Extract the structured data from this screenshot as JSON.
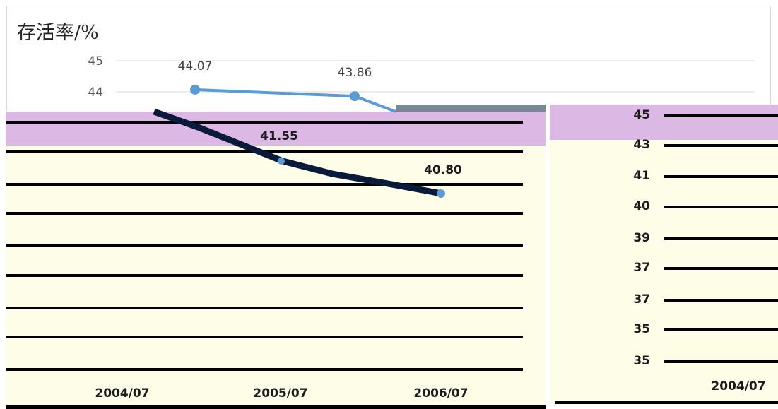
{
  "chart_data": {
    "type": "line",
    "ylabel": "存活率/%",
    "left_axis_ticks": [
      "45",
      "44"
    ],
    "series": [
      {
        "points": [
          {
            "label": "44.07",
            "value": 44.07
          },
          {
            "label": "43.86",
            "value": 43.86
          }
        ]
      }
    ],
    "lower_series_labels": [
      "41.55",
      "40.80"
    ],
    "right_axis_ticks": [
      "45",
      "43",
      "41",
      "40",
      "39",
      "37",
      "37",
      "35",
      "35"
    ],
    "xaxis_labels": [
      "2004/07",
      "2005/07",
      "2006/07",
      "2004/07"
    ],
    "grid": true
  },
  "colors": {
    "line": "#5b9bd5",
    "overlay_purple": "#dcb9e4",
    "overlay_cream": "#fdfde8",
    "dark_line": "#0a1a3a",
    "grid": "#d9d9d9"
  }
}
